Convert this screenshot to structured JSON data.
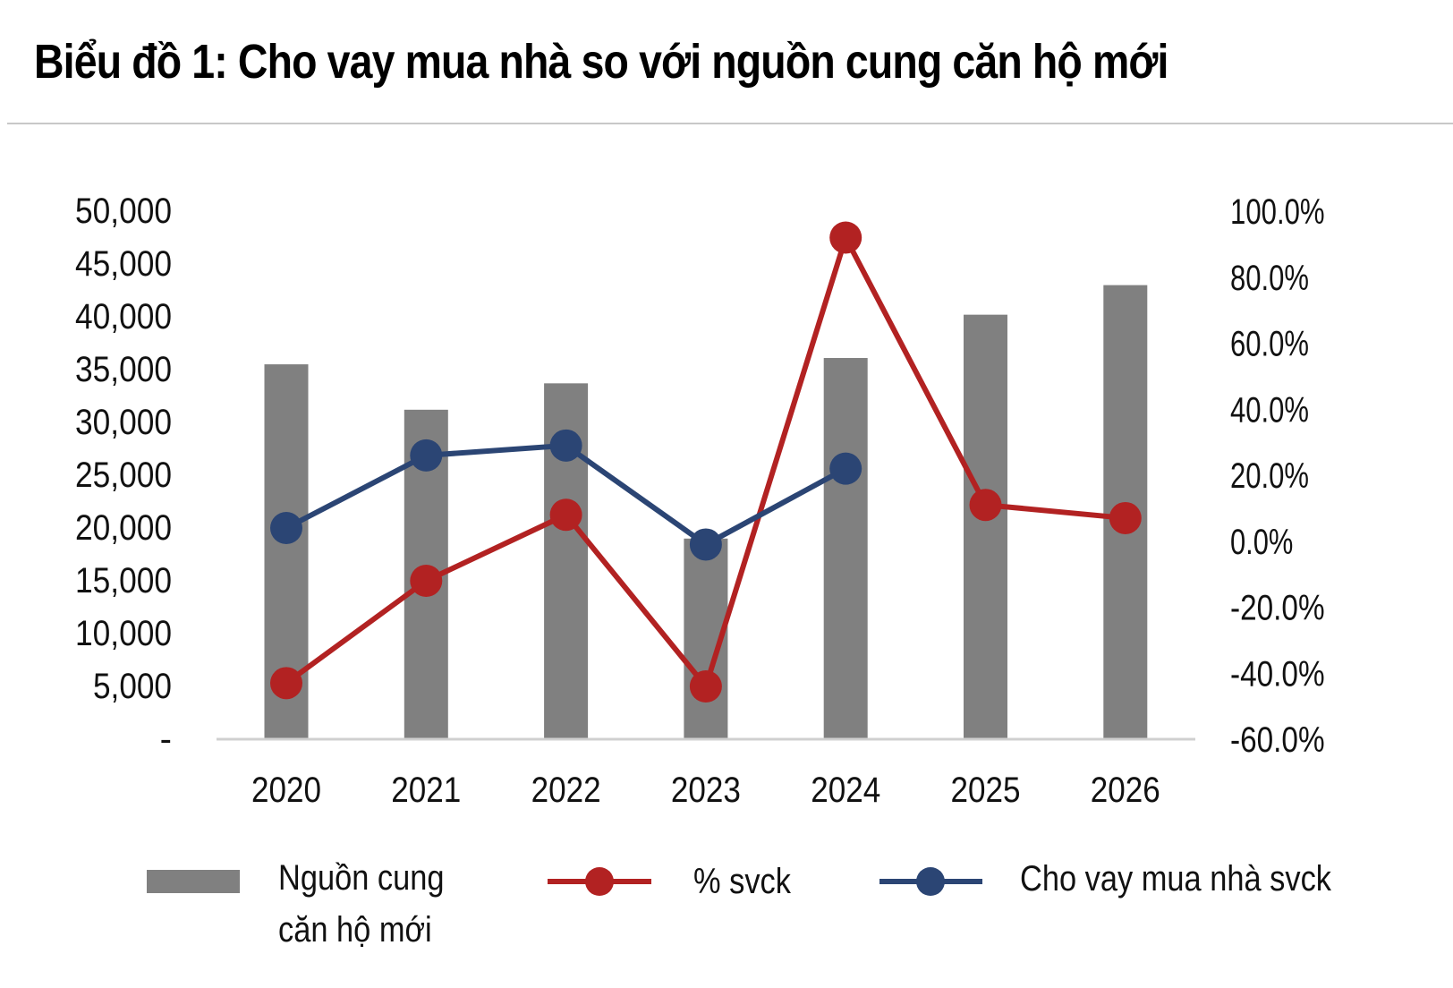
{
  "title": "Biểu đồ 1: Cho vay mua nhà so với nguồn cung căn hộ mới",
  "chart_data": {
    "type": "bar",
    "categories": [
      "2020",
      "2021",
      "2022",
      "2023",
      "2024",
      "2025",
      "2026"
    ],
    "series": [
      {
        "name": "Nguồn cung căn hộ mới",
        "type": "bar",
        "axis": "left",
        "values": [
          35500,
          31200,
          33700,
          19000,
          36100,
          40200,
          43000
        ],
        "color": "#808080"
      },
      {
        "name": "% svck",
        "type": "line",
        "axis": "right",
        "values": [
          -43.0,
          -12.0,
          8.0,
          -44.0,
          92.0,
          11.0,
          7.0
        ],
        "color": "#b22222"
      },
      {
        "name": "Cho vay mua nhà svck",
        "type": "line",
        "axis": "right",
        "values": [
          4.0,
          26.0,
          29.0,
          -1.0,
          22.0,
          null,
          null
        ],
        "color": "#2b4574"
      }
    ],
    "y_left": {
      "min": 0,
      "max": 50000,
      "tick_labels": [
        "-",
        "5,000",
        "10,000",
        "15,000",
        "20,000",
        "25,000",
        "30,000",
        "35,000",
        "40,000",
        "45,000",
        "50,000"
      ]
    },
    "y_right": {
      "min": -60,
      "max": 100,
      "tick_labels": [
        "-60.0%",
        "-40.0%",
        "-20.0%",
        "0.0%",
        "20.0%",
        "40.0%",
        "60.0%",
        "80.0%",
        "100.0%"
      ]
    },
    "grid": false,
    "legend_position": "bottom"
  },
  "legend": {
    "supply_label": "Nguồn cung căn hộ mới",
    "yoy_label": "% svck",
    "loan_label": "Cho vay mua nhà svck"
  }
}
